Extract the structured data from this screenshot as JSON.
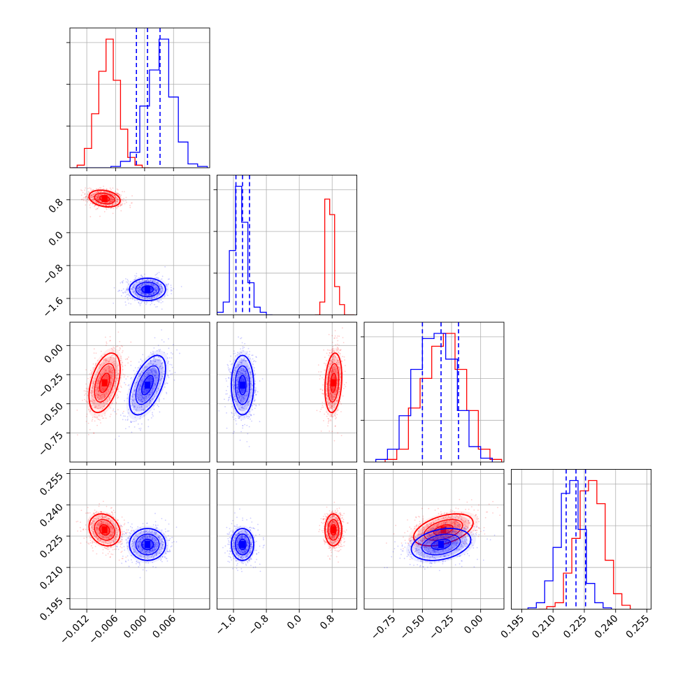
{
  "chart_data": {
    "type": "corner",
    "colors": {
      "posterior_a": "#ff0000",
      "posterior_b": "#0000ff",
      "grid": "#b0b0b0",
      "frame": "#000000"
    },
    "parameters": [
      {
        "index": 0,
        "label": "",
        "range": [
          -0.0155,
          0.0135
        ],
        "ticks": [
          -0.012,
          -0.006,
          0.0,
          0.006
        ],
        "tick_labels": [
          "−0.012",
          "−0.006",
          "0.000",
          "0.006"
        ]
      },
      {
        "index": 1,
        "label": "",
        "range": [
          -2.0,
          1.4
        ],
        "ticks": [
          -1.6,
          -0.8,
          0.0,
          0.8
        ],
        "tick_labels": [
          "−1.6",
          "−0.8",
          "0.0",
          "0.8"
        ]
      },
      {
        "index": 2,
        "label": "",
        "range": [
          -1.0,
          0.2
        ],
        "ticks": [
          -0.75,
          -0.5,
          -0.25,
          0.0
        ],
        "tick_labels": [
          "−0.75",
          "−0.50",
          "−0.25",
          "0.00"
        ],
        "y_ticks": [
          0.0,
          -0.25,
          -0.5,
          -0.75
        ],
        "y_tick_labels": [
          "0.00",
          "−0.25",
          "−0.50",
          "−0.75"
        ]
      },
      {
        "index": 3,
        "label": "",
        "range": [
          0.19,
          0.257
        ],
        "ticks": [
          0.195,
          0.21,
          0.225,
          0.24,
          0.255
        ],
        "tick_labels": [
          "0.195",
          "0.210",
          "0.225",
          "0.240",
          "0.255"
        ]
      }
    ],
    "series": [
      {
        "name": "",
        "color": "#ff0000",
        "means": [
          -0.0083,
          0.83,
          -0.32,
          0.228
        ],
        "sigmas": [
          0.0019,
          0.12,
          0.15,
          0.0045
        ],
        "correlations": {
          "1-0": -0.25,
          "2-0": 0.45,
          "2-1": 0.2,
          "3-0": -0.2,
          "3-1": 0.0,
          "3-2": 0.45
        },
        "hist": [
          {
            "edges": [
              -0.0155,
              -0.014,
              -0.0125,
              -0.011,
              -0.0095,
              -0.008,
              -0.0065,
              -0.005,
              -0.0035,
              -0.002,
              -0.0005,
              0.001
            ],
            "counts": [
              0,
              0.02,
              0.15,
              0.42,
              0.75,
              1.0,
              0.68,
              0.3,
              0.08,
              0.02,
              0
            ]
          },
          {
            "edges": [
              0.38,
              0.5,
              0.62,
              0.74,
              0.86,
              0.98,
              1.1,
              1.22,
              1.34
            ],
            "counts": [
              0,
              0.1,
              0.9,
              0.78,
              0.22,
              0.08,
              0,
              0
            ]
          },
          {
            "edges": [
              -0.82,
              -0.72,
              -0.62,
              -0.52,
              -0.42,
              -0.32,
              -0.22,
              -0.12,
              -0.02,
              0.08,
              0.18
            ],
            "counts": [
              0.02,
              0.1,
              0.42,
              0.65,
              0.9,
              1.0,
              0.72,
              0.4,
              0.1,
              0.02
            ]
          },
          {
            "edges": [
              0.203,
              0.207,
              0.211,
              0.215,
              0.219,
              0.223,
              0.227,
              0.231,
              0.235,
              0.239,
              0.243,
              0.247
            ],
            "counts": [
              0,
              0.02,
              0.05,
              0.28,
              0.55,
              0.92,
              1.0,
              0.82,
              0.38,
              0.12,
              0.03
            ]
          }
        ]
      },
      {
        "name": "",
        "color": "#0000ff",
        "means": [
          0.0006,
          -1.38,
          -0.34,
          0.221
        ],
        "sigmas": [
          0.0022,
          0.16,
          0.15,
          0.0045
        ],
        "correlations": {
          "1-0": 0.0,
          "2-0": 0.55,
          "2-1": 0.0,
          "3-0": 0.0,
          "3-1": 0.0,
          "3-2": 0.3
        },
        "quantiles": [
          [
            -0.0017,
            0.0006,
            0.0032
          ],
          [
            -1.54,
            -1.38,
            -1.21
          ],
          [
            -0.5,
            -0.34,
            -0.19
          ],
          [
            0.2163,
            0.221,
            0.2256
          ]
        ],
        "hist": [
          {
            "edges": [
              -0.015,
              -0.013,
              -0.011,
              -0.009,
              -0.007,
              -0.005,
              -0.003,
              -0.001,
              0.001,
              0.003,
              0.005,
              0.007,
              0.009,
              0.011,
              0.013
            ],
            "counts": [
              0,
              0,
              0,
              0,
              0.01,
              0.05,
              0.12,
              0.48,
              0.76,
              1.0,
              0.55,
              0.2,
              0.03,
              0.01
            ]
          },
          {
            "edges": [
              -2.0,
              -1.85,
              -1.7,
              -1.55,
              -1.4,
              -1.25,
              -1.1,
              -0.95,
              -0.8,
              -0.65
            ],
            "counts": [
              0.02,
              0.1,
              0.5,
              1.0,
              0.72,
              0.25,
              0.06,
              0.02,
              0
            ]
          },
          {
            "edges": [
              -0.9,
              -0.8,
              -0.7,
              -0.6,
              -0.5,
              -0.4,
              -0.3,
              -0.2,
              -0.1,
              0.0,
              0.1
            ],
            "counts": [
              0.02,
              0.1,
              0.36,
              0.72,
              0.96,
              1.0,
              0.8,
              0.4,
              0.12,
              0.03
            ]
          },
          {
            "edges": [
              0.198,
              0.202,
              0.206,
              0.21,
              0.214,
              0.218,
              0.222,
              0.226,
              0.23,
              0.234,
              0.238
            ],
            "counts": [
              0.01,
              0.05,
              0.22,
              0.48,
              0.9,
              1.0,
              0.62,
              0.2,
              0.05,
              0.01
            ]
          }
        ]
      }
    ],
    "grid": true,
    "legend": "none"
  }
}
